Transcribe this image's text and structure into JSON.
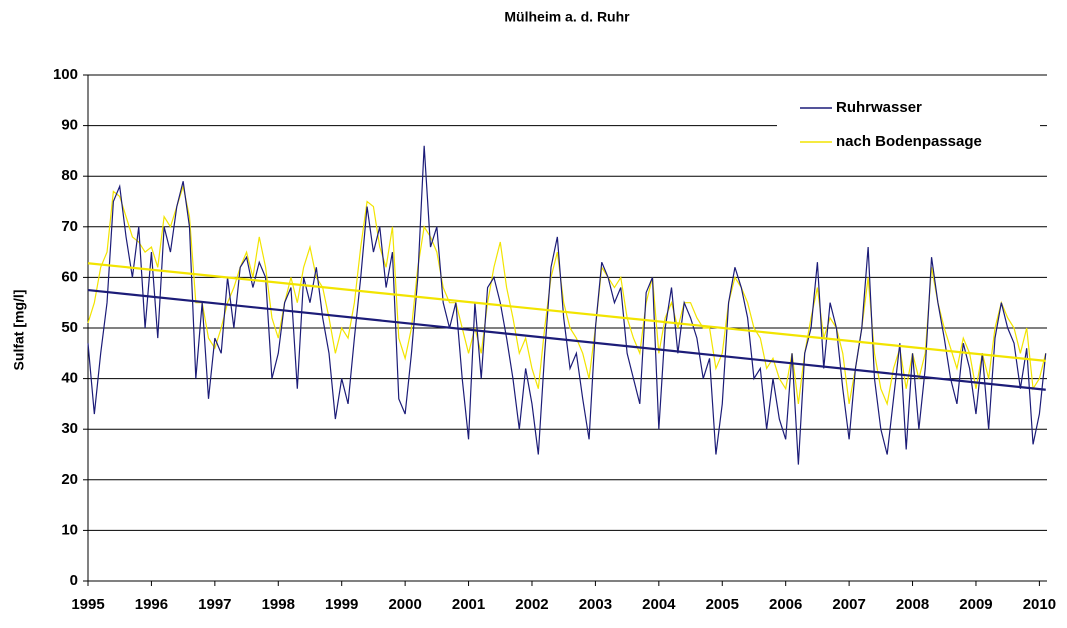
{
  "chart_data": {
    "type": "line",
    "title": "Mülheim a. d. Ruhr",
    "y_label": "Sulfat [mg/l]",
    "xlim": [
      1995,
      2010.12
    ],
    "ylim": [
      0,
      100
    ],
    "xticks": [
      1995,
      1996,
      1997,
      1998,
      1999,
      2000,
      2001,
      2002,
      2003,
      2004,
      2005,
      2006,
      2007,
      2008,
      2009,
      2010
    ],
    "yticks": [
      0,
      10,
      20,
      30,
      40,
      50,
      60,
      70,
      80,
      90,
      100
    ],
    "grid": true,
    "legend": "upper-right",
    "x": [
      1995.0,
      1995.1,
      1995.2,
      1995.3,
      1995.4,
      1995.5,
      1995.6,
      1995.7,
      1995.8,
      1995.9,
      1996.0,
      1996.1,
      1996.2,
      1996.3,
      1996.4,
      1996.5,
      1996.6,
      1996.7,
      1996.8,
      1996.9,
      1997.0,
      1997.1,
      1997.2,
      1997.3,
      1997.4,
      1997.5,
      1997.6,
      1997.7,
      1997.8,
      1997.9,
      1998.0,
      1998.1,
      1998.2,
      1998.3,
      1998.4,
      1998.5,
      1998.6,
      1998.7,
      1998.8,
      1998.9,
      1999.0,
      1999.1,
      1999.2,
      1999.3,
      1999.4,
      1999.5,
      1999.6,
      1999.7,
      1999.8,
      1999.9,
      2000.0,
      2000.1,
      2000.2,
      2000.3,
      2000.4,
      2000.5,
      2000.6,
      2000.7,
      2000.8,
      2000.9,
      2001.0,
      2001.1,
      2001.2,
      2001.3,
      2001.4,
      2001.5,
      2001.6,
      2001.7,
      2001.8,
      2001.9,
      2002.0,
      2002.1,
      2002.2,
      2002.3,
      2002.4,
      2002.5,
      2002.6,
      2002.7,
      2002.8,
      2002.9,
      2003.0,
      2003.1,
      2003.2,
      2003.3,
      2003.4,
      2003.5,
      2003.6,
      2003.7,
      2003.8,
      2003.9,
      2004.0,
      2004.1,
      2004.2,
      2004.3,
      2004.4,
      2004.5,
      2004.6,
      2004.7,
      2004.8,
      2004.9,
      2005.0,
      2005.1,
      2005.2,
      2005.3,
      2005.4,
      2005.5,
      2005.6,
      2005.7,
      2005.8,
      2005.9,
      2006.0,
      2006.1,
      2006.2,
      2006.3,
      2006.4,
      2006.5,
      2006.6,
      2006.7,
      2006.8,
      2006.9,
      2007.0,
      2007.1,
      2007.2,
      2007.3,
      2007.4,
      2007.5,
      2007.6,
      2007.7,
      2007.8,
      2007.9,
      2008.0,
      2008.1,
      2008.2,
      2008.3,
      2008.4,
      2008.5,
      2008.6,
      2008.7,
      2008.8,
      2008.9,
      2009.0,
      2009.1,
      2009.2,
      2009.3,
      2009.4,
      2009.5,
      2009.6,
      2009.7,
      2009.8,
      2009.9,
      2010.0,
      2010.1
    ],
    "series": [
      {
        "name": "Ruhrwasser",
        "color": "#1c1c78",
        "values": [
          47,
          33,
          45,
          55,
          75,
          78,
          68,
          60,
          70,
          50,
          65,
          48,
          70,
          65,
          74,
          79,
          70,
          40,
          55,
          36,
          48,
          45,
          60,
          50,
          62,
          64,
          58,
          63,
          60,
          40,
          45,
          55,
          58,
          38,
          60,
          55,
          62,
          52,
          45,
          32,
          40,
          35,
          48,
          60,
          74,
          65,
          70,
          58,
          65,
          36,
          33,
          45,
          60,
          86,
          66,
          70,
          55,
          50,
          55,
          40,
          28,
          55,
          40,
          58,
          60,
          55,
          48,
          40,
          30,
          42,
          35,
          25,
          45,
          62,
          68,
          52,
          42,
          45,
          36,
          28,
          50,
          63,
          60,
          55,
          58,
          45,
          40,
          35,
          57,
          60,
          30,
          50,
          58,
          45,
          55,
          52,
          48,
          40,
          44,
          25,
          35,
          55,
          62,
          58,
          52,
          40,
          42,
          30,
          40,
          32,
          28,
          45,
          23,
          45,
          50,
          63,
          42,
          55,
          50,
          38,
          28,
          42,
          50,
          66,
          40,
          30,
          25,
          36,
          47,
          26,
          45,
          30,
          42,
          64,
          55,
          48,
          40,
          35,
          47,
          42,
          33,
          45,
          30,
          48,
          55,
          50,
          47,
          38,
          46,
          27,
          33,
          45
        ],
        "trend": {
          "x": [
            1995.0,
            2010.1
          ],
          "values": [
            57.5,
            37.8
          ]
        }
      },
      {
        "name": "nach Bodenpassage",
        "color": "#f2e400",
        "values": [
          51,
          55,
          62,
          65,
          77,
          76,
          72,
          68,
          67,
          65,
          66,
          62,
          72,
          70,
          74,
          78,
          72,
          55,
          55,
          48,
          46,
          50,
          55,
          58,
          62,
          65,
          60,
          68,
          62,
          52,
          48,
          55,
          60,
          55,
          62,
          66,
          60,
          58,
          52,
          45,
          50,
          48,
          55,
          66,
          75,
          74,
          66,
          62,
          70,
          48,
          44,
          50,
          62,
          70,
          68,
          65,
          58,
          55,
          55,
          50,
          45,
          50,
          45,
          55,
          62,
          67,
          58,
          52,
          45,
          48,
          42,
          38,
          50,
          60,
          65,
          55,
          50,
          48,
          45,
          40,
          50,
          62,
          60,
          58,
          60,
          52,
          48,
          45,
          55,
          60,
          45,
          52,
          55,
          50,
          55,
          55,
          52,
          50,
          50,
          42,
          45,
          55,
          60,
          58,
          55,
          50,
          48,
          42,
          44,
          40,
          38,
          45,
          35,
          45,
          52,
          58,
          48,
          52,
          50,
          45,
          35,
          42,
          50,
          60,
          45,
          38,
          35,
          42,
          46,
          38,
          45,
          40,
          45,
          62,
          55,
          50,
          46,
          42,
          48,
          45,
          38,
          45,
          40,
          50,
          55,
          52,
          50,
          45,
          50,
          38,
          40,
          45
        ],
        "trend": {
          "x": [
            1995.0,
            2010.1
          ],
          "values": [
            62.8,
            43.5
          ]
        }
      }
    ]
  }
}
